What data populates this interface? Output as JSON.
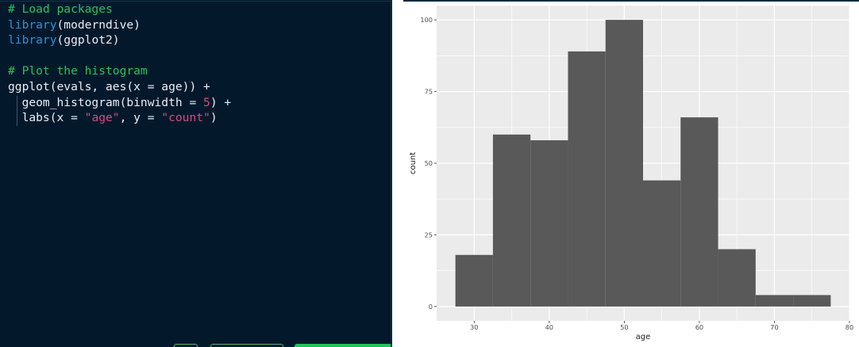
{
  "editor": {
    "lines": [
      [
        {
          "t": "# Load packages",
          "c": "cmt"
        }
      ],
      [
        {
          "t": "library",
          "c": "fn"
        },
        {
          "t": "(moderndive)",
          "c": "txt"
        }
      ],
      [
        {
          "t": "library",
          "c": "fn"
        },
        {
          "t": "(ggplot2)",
          "c": "txt"
        }
      ],
      [],
      [
        {
          "t": "# Plot the histogram",
          "c": "cmt"
        }
      ],
      [
        {
          "t": "ggplot(evals, aes(x = age)) +",
          "c": "txt"
        }
      ],
      [
        {
          "t": "  geom_histogram(binwidth = ",
          "c": "txt"
        },
        {
          "t": "5",
          "c": "num"
        },
        {
          "t": ") +",
          "c": "txt"
        }
      ],
      [
        {
          "t": "  labs(x = ",
          "c": "txt"
        },
        {
          "t": "\"age\"",
          "c": "str"
        },
        {
          "t": ", y = ",
          "c": "txt"
        },
        {
          "t": "\"count\"",
          "c": "str"
        },
        {
          "t": ")",
          "c": "txt"
        }
      ]
    ]
  },
  "chart_data": {
    "type": "bar",
    "xlabel": "age",
    "ylabel": "count",
    "bins": [
      {
        "x0": 27.5,
        "x1": 32.5,
        "count": 18
      },
      {
        "x0": 32.5,
        "x1": 37.5,
        "count": 60
      },
      {
        "x0": 37.5,
        "x1": 42.5,
        "count": 58
      },
      {
        "x0": 42.5,
        "x1": 47.5,
        "count": 89
      },
      {
        "x0": 47.5,
        "x1": 52.5,
        "count": 100
      },
      {
        "x0": 52.5,
        "x1": 57.5,
        "count": 44
      },
      {
        "x0": 57.5,
        "x1": 62.5,
        "count": 66
      },
      {
        "x0": 62.5,
        "x1": 67.5,
        "count": 20
      },
      {
        "x0": 67.5,
        "x1": 72.5,
        "count": 4
      },
      {
        "x0": 72.5,
        "x1": 77.5,
        "count": 4
      }
    ],
    "xlim": [
      25,
      80
    ],
    "ylim": [
      -5,
      105
    ],
    "xticks": [
      30,
      40,
      50,
      60,
      70,
      80
    ],
    "yticks": [
      0,
      25,
      50,
      75,
      100
    ],
    "grid": true,
    "colors": {
      "panel": "#ebebeb",
      "grid": "#ffffff",
      "bar": "#595959"
    }
  }
}
